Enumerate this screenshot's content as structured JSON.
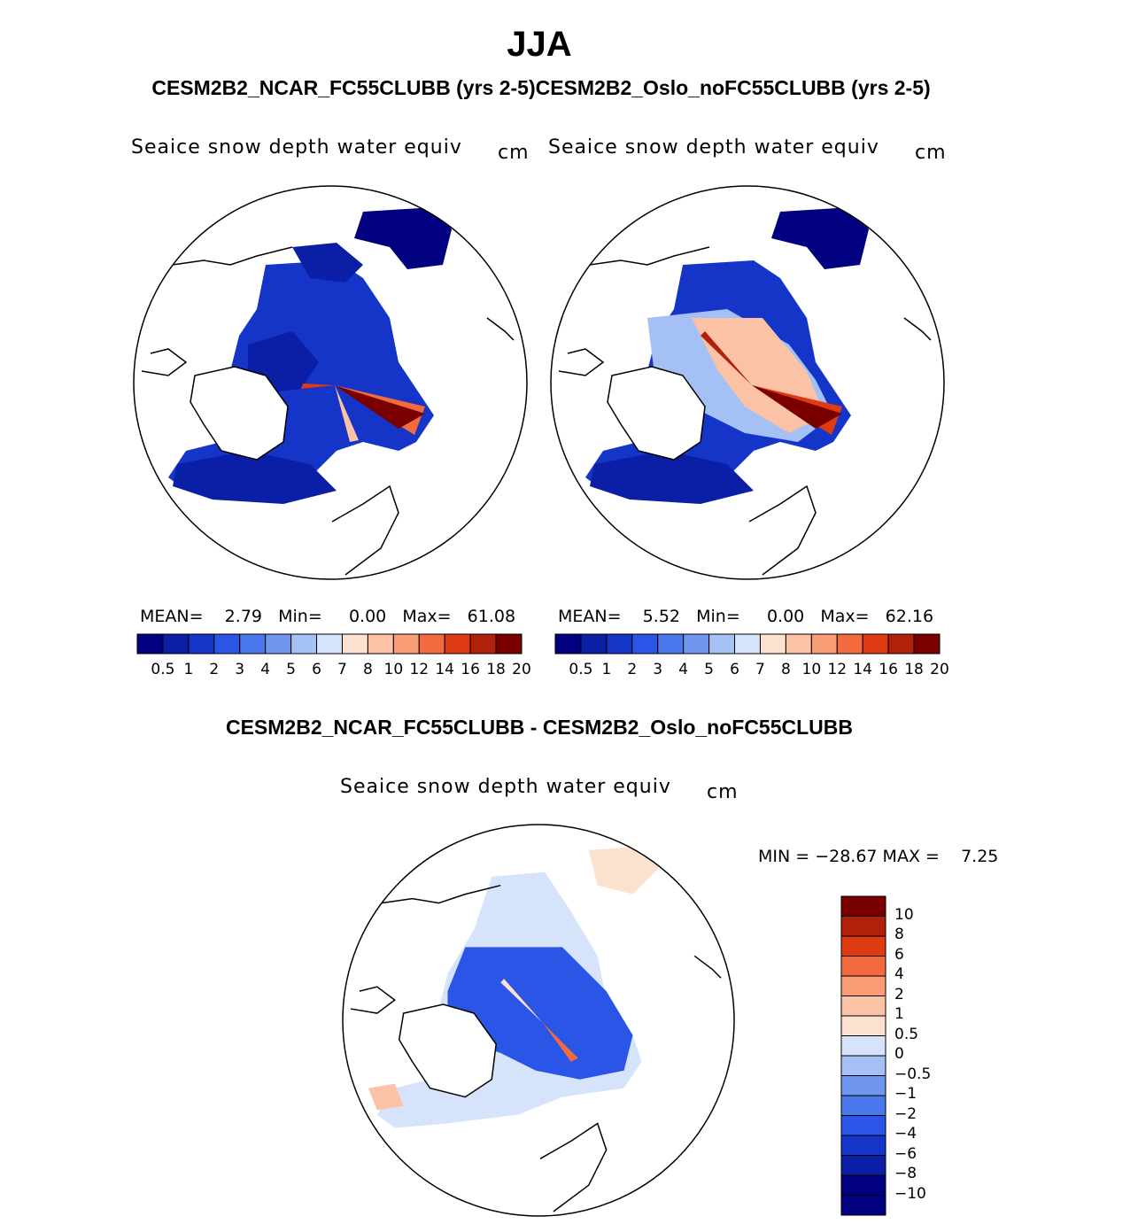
{
  "season_title": "JJA",
  "top_subtitle": "CESM2B2_NCAR_FC55CLUBB (yrs 2-5)CESM2B2_Oslo_noFC55CLUBB (yrs 2-5)",
  "diff_subtitle": "CESM2B2_NCAR_FC55CLUBB - CESM2B2_Oslo_noFC55CLUBB",
  "panels": [
    {
      "variable": "Seaice snow depth water equiv",
      "units": "cm",
      "stats": "MEAN=    2.79   Min=     0.00   Max=   61.08",
      "colorbar_ticks": [
        "0.5",
        "1",
        "2",
        "3",
        "4",
        "5",
        "6",
        "7",
        "8",
        "10",
        "12",
        "14",
        "16",
        "18",
        "20"
      ]
    },
    {
      "variable": "Seaice snow depth water equiv",
      "units": "cm",
      "stats": "MEAN=    5.52   Min=     0.00   Max=   62.16",
      "colorbar_ticks": [
        "0.5",
        "1",
        "2",
        "3",
        "4",
        "5",
        "6",
        "7",
        "8",
        "10",
        "12",
        "14",
        "16",
        "18",
        "20"
      ]
    },
    {
      "variable": "Seaice snow depth water equiv",
      "units": "cm",
      "stats": "MIN = −28.67 MAX =    7.25",
      "colorbar_ticks": [
        "10",
        "8",
        "6",
        "4",
        "2",
        "1",
        "0.5",
        "0",
        "−0.5",
        "−1",
        "−2",
        "−4",
        "−6",
        "−8",
        "−10"
      ]
    }
  ],
  "colors": {
    "abs_scale": [
      "#000080",
      "#0b1ea6",
      "#1535c9",
      "#2a55e6",
      "#4a78ec",
      "#6f97ee",
      "#a4c0f5",
      "#d5e4fb",
      "#fde1cf",
      "#fbc2a5",
      "#f89c76",
      "#f26a3e",
      "#de3b12",
      "#b0200a",
      "#7a0000"
    ],
    "diff_scale": [
      "#7a0000",
      "#b0200a",
      "#de3b12",
      "#f26a3e",
      "#f89c76",
      "#fbc2a5",
      "#fde1cf",
      "#d5e4fb",
      "#a4c0f5",
      "#6f97ee",
      "#4a78ec",
      "#2a55e6",
      "#1535c9",
      "#0b1ea6",
      "#000080"
    ]
  }
}
